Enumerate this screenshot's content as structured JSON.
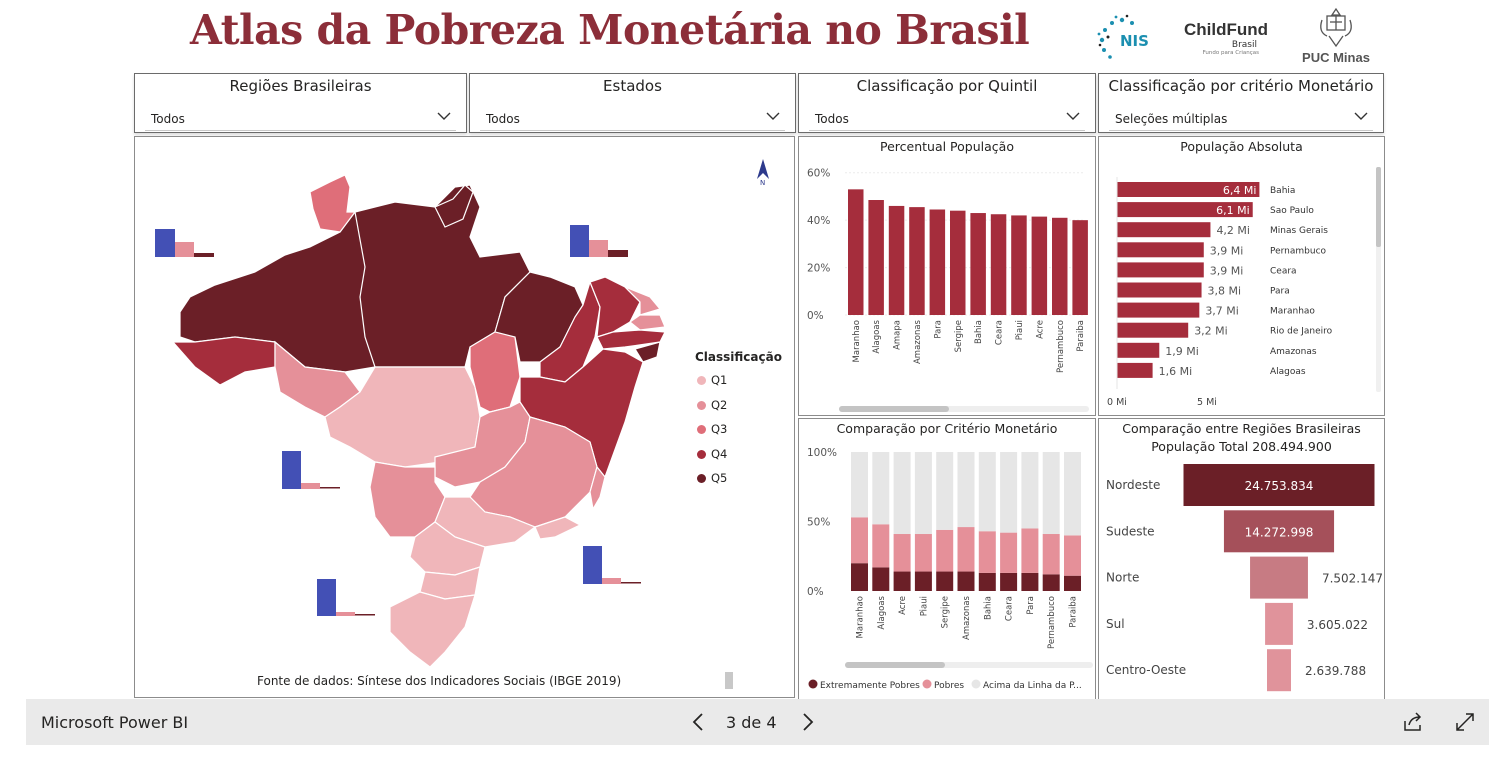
{
  "header": {
    "title": "Atlas da Pobreza Monetária no Brasil",
    "logos": {
      "nis": "NIS",
      "childfund": "ChildFund",
      "childfund_sub": "Brasil",
      "childfund_tag": "Fundo para Crianças",
      "puc": "PUC Minas"
    }
  },
  "slicers": [
    {
      "label": "Regiões Brasileiras",
      "value": "Todos"
    },
    {
      "label": "Estados",
      "value": "Todos"
    },
    {
      "label": "Classificação por Quintil",
      "value": "Todos"
    },
    {
      "label": "Classificação por critério Monetário",
      "value": "Seleções múltiplas"
    }
  ],
  "map": {
    "legend_title": "Classificação",
    "legend": [
      {
        "label": "Q1",
        "color": "#f0b6ba"
      },
      {
        "label": "Q2",
        "color": "#e59099"
      },
      {
        "label": "Q3",
        "color": "#df6e79"
      },
      {
        "label": "Q4",
        "color": "#a52d3c"
      },
      {
        "label": "Q5",
        "color": "#6b1f27"
      }
    ],
    "source": "Fonte de dados: Síntese dos Indicadores Sociais (IBGE 2019)",
    "compass": "N"
  },
  "chart_percent": {
    "title": "Percentual População",
    "chart_data": {
      "type": "bar",
      "categories": [
        "Maranhao",
        "Alagoas",
        "Amapa",
        "Amazonas",
        "Para",
        "Sergipe",
        "Bahia",
        "Ceara",
        "Piaui",
        "Acre",
        "Pernambuco",
        "Paraiba"
      ],
      "values": [
        53,
        48.5,
        46,
        45.5,
        44.5,
        44,
        43,
        42.5,
        42,
        41.5,
        41,
        40
      ],
      "yticks": [
        "0%",
        "20%",
        "40%",
        "60%"
      ],
      "ylim": [
        0,
        62
      ],
      "color": "#a52d3c"
    }
  },
  "chart_abs": {
    "title": "População Absoluta",
    "chart_data": {
      "type": "bar",
      "orientation": "horizontal",
      "categories": [
        "Bahia",
        "Sao Paulo",
        "Minas Gerais",
        "Pernambuco",
        "Ceara",
        "Para",
        "Maranhao",
        "Rio de Janeiro",
        "Amazonas",
        "Alagoas"
      ],
      "values": [
        6.4,
        6.1,
        4.2,
        3.9,
        3.9,
        3.8,
        3.7,
        3.2,
        1.9,
        1.6
      ],
      "labels": [
        "6,4 Mi",
        "6,1 Mi",
        "4,2 Mi",
        "3,9 Mi",
        "3,9 Mi",
        "3,8 Mi",
        "3,7 Mi",
        "3,2 Mi",
        "1,9 Mi",
        "1,6 Mi"
      ],
      "xticks": [
        "0 Mi",
        "5 Mi"
      ],
      "xlim": [
        0,
        8
      ],
      "color": "#a52d3c"
    }
  },
  "chart_stack": {
    "title": "Comparação por Critério Monetário",
    "chart_data": {
      "type": "bar",
      "stacked": "100%",
      "categories": [
        "Maranhao",
        "Alagoas",
        "Acre",
        "Piaui",
        "Sergipe",
        "Amazonas",
        "Bahia",
        "Ceara",
        "Para",
        "Pernambuco",
        "Paraiba"
      ],
      "series": [
        {
          "name": "Extremamente Pobres",
          "values": [
            20,
            17,
            14,
            14,
            14,
            14,
            13,
            13,
            13,
            12,
            11
          ],
          "color": "#6b1f27"
        },
        {
          "name": "Pobres",
          "values": [
            33,
            31,
            27,
            27,
            30,
            32,
            30,
            29,
            32,
            29,
            29
          ],
          "color": "#e59099"
        },
        {
          "name": "Acima da Linha da P...",
          "values": [
            47,
            52,
            59,
            59,
            56,
            54,
            57,
            58,
            55,
            59,
            60
          ],
          "color": "#e6e6e6"
        }
      ],
      "yticks": [
        "0%",
        "50%",
        "100%"
      ]
    }
  },
  "chart_funnel": {
    "title": "Comparação entre Regiões Brasileiras",
    "subtitle": "População Total 208.494.900",
    "chart_data": {
      "type": "bar",
      "style": "funnel",
      "categories": [
        "Nordeste",
        "Sudeste",
        "Norte",
        "Sul",
        "Centro-Oeste"
      ],
      "values": [
        24753834,
        14272998,
        7502147,
        3605022,
        2639788
      ],
      "labels": [
        "24.753.834",
        "14.272.998",
        "7.502.147",
        "3.605.022",
        "2.639.788"
      ],
      "colors": [
        "#6b1f27",
        "#a5505a",
        "#c77b83",
        "#e0939b",
        "#e0939b"
      ]
    }
  },
  "footer": {
    "brand": "Microsoft Power BI",
    "page": "3 de 4"
  }
}
